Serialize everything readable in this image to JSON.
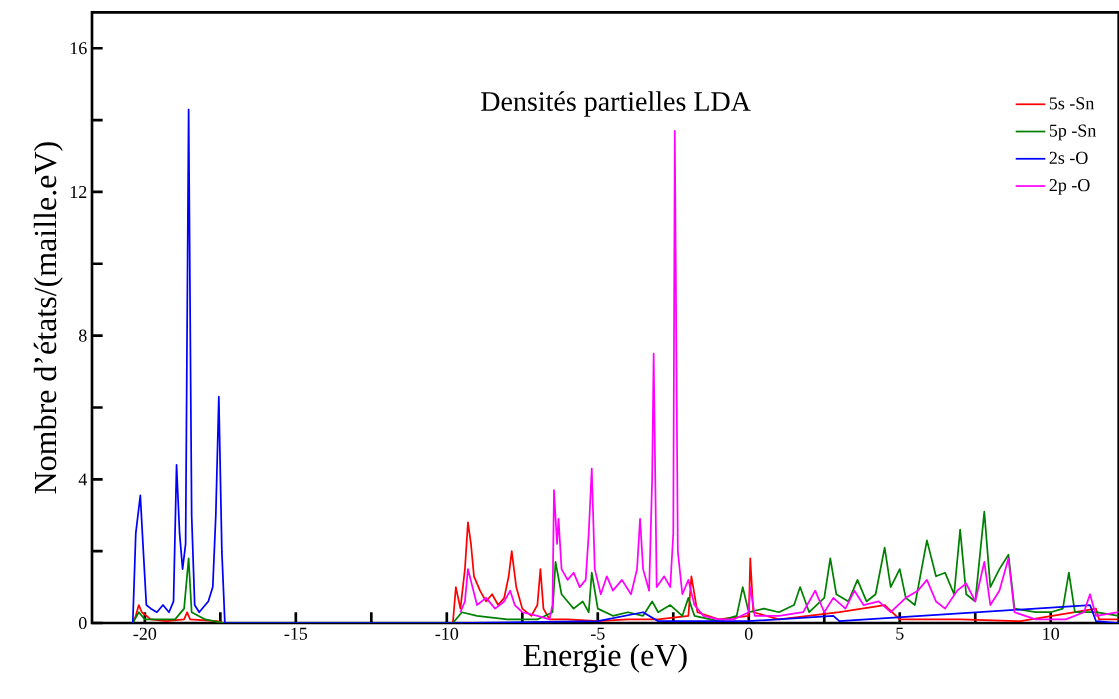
{
  "chart_data": {
    "type": "line",
    "title": "Densités partielles LDA",
    "xlabel": "Energie (eV)",
    "ylabel": "Nombre d’états/(maille.eV)",
    "xlim": [
      -21.75,
      12.25
    ],
    "ylim": [
      0,
      17
    ],
    "xticks": [
      -20,
      {
        "value": -17.5,
        "label": null
      },
      -15,
      {
        "value": -12.5,
        "label": null
      },
      -10,
      {
        "value": -7.5,
        "label": null
      },
      -5,
      {
        "value": -2.5,
        "label": null
      },
      0,
      {
        "value": 2.5,
        "label": null
      },
      5,
      {
        "value": 7.5,
        "label": null
      },
      10
    ],
    "yticks": [
      0,
      {
        "value": 2,
        "label": null
      },
      4,
      {
        "value": 6,
        "label": null
      },
      8,
      {
        "value": 10,
        "label": null
      },
      12,
      {
        "value": 14,
        "label": null
      },
      16
    ],
    "grid": false,
    "legend": "top right",
    "marker": "none",
    "line_style": "solid",
    "series": [
      {
        "name": "5s  -Sn",
        "color": "#ff0000",
        "x": [
          -20.4,
          -20.3,
          -20.2,
          -20.1,
          -19.8,
          -19.3,
          -18.7,
          -18.6,
          -18.5,
          -17.6,
          -17.4,
          -9.8,
          -9.7,
          -9.55,
          -9.4,
          -9.3,
          -9.2,
          -9.1,
          -8.9,
          -8.7,
          -8.5,
          -8.3,
          -8.1,
          -7.95,
          -7.85,
          -7.7,
          -7.5,
          -7.2,
          -7.0,
          -6.9,
          -6.8,
          -6.6,
          -6.0,
          -5.0,
          -4.0,
          -3.0,
          -2.0,
          -1.9,
          -1.7,
          -1.0,
          0.0,
          0.05,
          0.15,
          1.0,
          2.0,
          3.0,
          4.5,
          5.0,
          6.0,
          7.0,
          9.0,
          11.5,
          11.6,
          12.25
        ],
        "values": [
          0,
          0.2,
          0.5,
          0.3,
          0.1,
          0.05,
          0.1,
          0.3,
          0.1,
          0.05,
          0,
          0,
          1.0,
          0.4,
          1.5,
          2.8,
          2.2,
          1.3,
          0.9,
          0.6,
          0.8,
          0.5,
          0.7,
          1.3,
          2.0,
          1.0,
          0.4,
          0.2,
          0.5,
          1.5,
          0.4,
          0.1,
          0.1,
          0.05,
          0.1,
          0.1,
          0.2,
          1.3,
          0.3,
          0.1,
          0.2,
          1.8,
          0.3,
          0.1,
          0.2,
          0.3,
          0.5,
          0.1,
          0.1,
          0.1,
          0.05,
          0.4,
          0.1,
          0.1
        ]
      },
      {
        "name": "5p  -Sn",
        "color": "#008000",
        "x": [
          -20.4,
          -20.2,
          -20.0,
          -19.0,
          -18.7,
          -18.55,
          -18.45,
          -18.0,
          -17.4,
          -9.8,
          -9.5,
          -9.0,
          -8.0,
          -7.0,
          -6.5,
          -6.4,
          -6.2,
          -6.0,
          -5.8,
          -5.5,
          -5.3,
          -5.2,
          -5.0,
          -4.5,
          -4.0,
          -3.5,
          -3.2,
          -3.0,
          -2.6,
          -2.2,
          -2.0,
          -1.8,
          -1.0,
          -0.4,
          -0.2,
          0.0,
          0.5,
          1.0,
          1.5,
          1.7,
          2.0,
          2.5,
          2.7,
          2.9,
          3.3,
          3.6,
          3.9,
          4.2,
          4.5,
          4.7,
          5.0,
          5.2,
          5.5,
          5.9,
          6.2,
          6.5,
          6.8,
          7.0,
          7.2,
          7.5,
          7.8,
          8.0,
          8.3,
          8.6,
          8.8,
          9.5,
          10.0,
          10.4,
          10.6,
          10.8,
          11.5,
          12.25
        ],
        "values": [
          0,
          0.3,
          0.1,
          0.1,
          0.4,
          1.8,
          0.3,
          0.1,
          0,
          0,
          0.3,
          0.2,
          0.1,
          0.1,
          0.3,
          1.7,
          0.8,
          0.6,
          0.4,
          0.6,
          0.3,
          1.4,
          0.4,
          0.2,
          0.3,
          0.2,
          0.6,
          0.3,
          0.5,
          0.2,
          0.7,
          0.2,
          0.05,
          0.2,
          1.0,
          0.3,
          0.4,
          0.3,
          0.5,
          1.0,
          0.3,
          0.7,
          1.8,
          0.8,
          0.6,
          1.2,
          0.6,
          0.8,
          2.1,
          1.0,
          1.5,
          0.7,
          0.5,
          2.3,
          1.3,
          1.4,
          0.8,
          2.6,
          0.8,
          0.6,
          3.1,
          1.0,
          1.5,
          1.9,
          0.4,
          0.3,
          0.3,
          0.4,
          1.4,
          0.3,
          0.3,
          0.2
        ]
      },
      {
        "name": "2s  -O",
        "color": "#0000ff",
        "x": [
          -20.4,
          -20.3,
          -20.15,
          -20.05,
          -19.95,
          -19.8,
          -19.6,
          -19.4,
          -19.2,
          -19.05,
          -18.95,
          -18.85,
          -18.75,
          -18.65,
          -18.55,
          -18.45,
          -18.35,
          -18.2,
          -18.0,
          -17.9,
          -17.75,
          -17.65,
          -17.55,
          -17.45,
          -17.35,
          -9.8,
          -5.0,
          -3.5,
          -3.0,
          0.0,
          2.8,
          3.0,
          11.3,
          11.5,
          12.25
        ],
        "values": [
          0,
          2.5,
          3.55,
          2.0,
          0.5,
          0.4,
          0.3,
          0.5,
          0.3,
          0.6,
          4.4,
          2.5,
          1.5,
          2.2,
          14.3,
          3.0,
          0.5,
          0.3,
          0.5,
          0.6,
          1.0,
          3.0,
          6.3,
          2.0,
          0,
          0,
          0.05,
          0.3,
          0.05,
          0.05,
          0.2,
          0.05,
          0.5,
          0.05,
          0.0
        ]
      },
      {
        "name": "2p  -O",
        "color": "#ff00ff",
        "x": [
          -9.55,
          -9.4,
          -9.3,
          -9.15,
          -9.0,
          -8.7,
          -8.4,
          -8.1,
          -7.9,
          -7.75,
          -7.5,
          -7.0,
          -6.6,
          -6.5,
          -6.45,
          -6.35,
          -6.3,
          -6.2,
          -6.0,
          -5.8,
          -5.6,
          -5.4,
          -5.3,
          -5.2,
          -5.1,
          -4.9,
          -4.7,
          -4.5,
          -4.2,
          -3.9,
          -3.7,
          -3.6,
          -3.5,
          -3.3,
          -3.2,
          -3.15,
          -3.05,
          -2.8,
          -2.6,
          -2.5,
          -2.45,
          -2.35,
          -2.2,
          -2.0,
          -1.8,
          -1.5,
          -1.0,
          -0.5,
          0.0,
          0.05,
          0.2,
          1.0,
          1.8,
          2.2,
          2.5,
          2.8,
          3.2,
          3.5,
          3.8,
          4.3,
          4.7,
          5.2,
          5.6,
          5.9,
          6.2,
          6.5,
          6.9,
          7.2,
          7.5,
          7.8,
          8.0,
          8.3,
          8.6,
          8.8,
          9.5,
          10.5,
          11.1,
          11.3,
          11.5,
          12.25
        ],
        "values": [
          0.3,
          0.6,
          1.5,
          1.0,
          0.5,
          0.7,
          0.4,
          0.6,
          0.9,
          0.5,
          0.3,
          0.2,
          0.1,
          0.5,
          3.7,
          2.2,
          2.9,
          1.5,
          1.2,
          1.4,
          1.0,
          1.2,
          2.5,
          4.3,
          1.5,
          0.8,
          1.3,
          0.9,
          1.2,
          0.8,
          1.5,
          2.9,
          1.5,
          0.9,
          4.0,
          7.5,
          1.0,
          1.3,
          1.0,
          2.5,
          13.7,
          2.0,
          0.8,
          1.2,
          0.5,
          0.2,
          0.1,
          0.1,
          0.3,
          1.0,
          0.2,
          0.2,
          0.3,
          0.9,
          0.3,
          0.7,
          0.4,
          0.9,
          0.5,
          0.6,
          0.3,
          0.7,
          0.9,
          1.2,
          0.6,
          0.4,
          0.9,
          1.1,
          0.6,
          1.7,
          0.5,
          0.9,
          1.8,
          0.3,
          0.1,
          0.1,
          0.3,
          0.8,
          0.2,
          0.3
        ]
      }
    ]
  }
}
